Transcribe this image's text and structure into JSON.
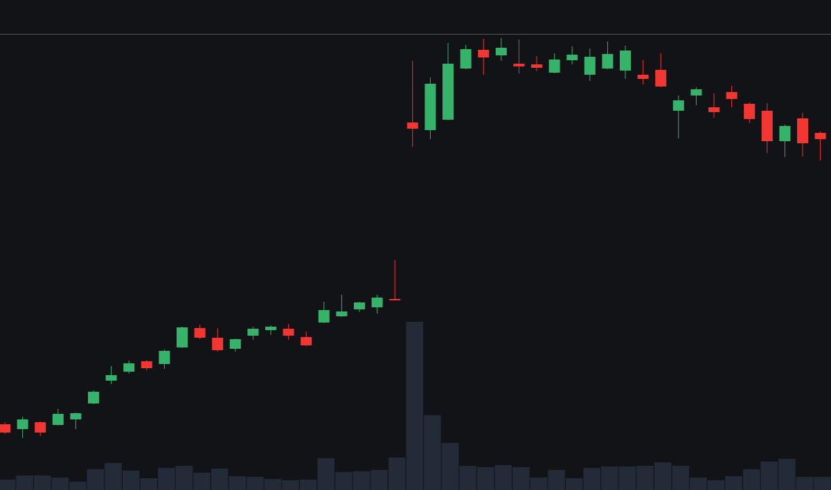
{
  "chart_data": {
    "type": "candlestick",
    "ylim": [
      0,
      708
    ],
    "up_color": "#36b36a",
    "down_color": "#f23632",
    "volume_color": "#232b38",
    "open": [
      95,
      88,
      98,
      94,
      102,
      125,
      158,
      171,
      186,
      182,
      206,
      234,
      220,
      204,
      223,
      231,
      233,
      221,
      242,
      251,
      261,
      264,
      276,
      531,
      520,
      535,
      609,
      636,
      628,
      616,
      615,
      603,
      621,
      600,
      609,
      606,
      600,
      607,
      548,
      570,
      553,
      575,
      558,
      548,
      504,
      537,
      516
    ],
    "high": [
      98,
      106,
      99,
      117,
      112,
      144,
      179,
      187,
      188,
      203,
      236,
      239,
      234,
      219,
      236,
      238,
      240,
      229,
      272,
      282,
      272,
      282,
      332,
      620,
      596,
      646,
      643,
      652,
      653,
      651,
      627,
      631,
      641,
      638,
      648,
      642,
      621,
      631,
      570,
      582,
      573,
      584,
      560,
      559,
      528,
      545,
      518
    ],
    "low": [
      81,
      75,
      78,
      93,
      88,
      124,
      153,
      168,
      173,
      175,
      205,
      218,
      200,
      200,
      217,
      224,
      217,
      208,
      241,
      250,
      257,
      255,
      274,
      496,
      507,
      534,
      608,
      600,
      620,
      602,
      605,
      602,
      615,
      591,
      608,
      594,
      586,
      582,
      508,
      556,
      538,
      553,
      530,
      487,
      481,
      482,
      476
    ],
    "close": [
      83,
      102,
      83,
      110,
      111,
      142,
      166,
      183,
      176,
      201,
      235,
      220,
      202,
      218,
      233,
      236,
      223,
      209,
      260,
      258,
      271,
      278,
      274,
      522,
      587,
      616,
      637,
      625,
      639,
      612,
      610,
      622,
      629,
      626,
      630,
      635,
      594,
      583,
      563,
      579,
      546,
      565,
      536,
      504,
      526,
      501,
      507
    ],
    "volume": [
      15,
      21,
      21,
      18,
      12,
      30,
      39,
      28,
      17,
      32,
      35,
      25,
      31,
      20,
      19,
      16,
      14,
      15,
      46,
      26,
      27,
      29,
      47,
      243,
      108,
      68,
      35,
      33,
      36,
      33,
      18,
      29,
      17,
      32,
      34,
      34,
      35,
      40,
      35,
      18,
      14,
      20,
      30,
      41,
      45,
      19,
      19
    ]
  }
}
